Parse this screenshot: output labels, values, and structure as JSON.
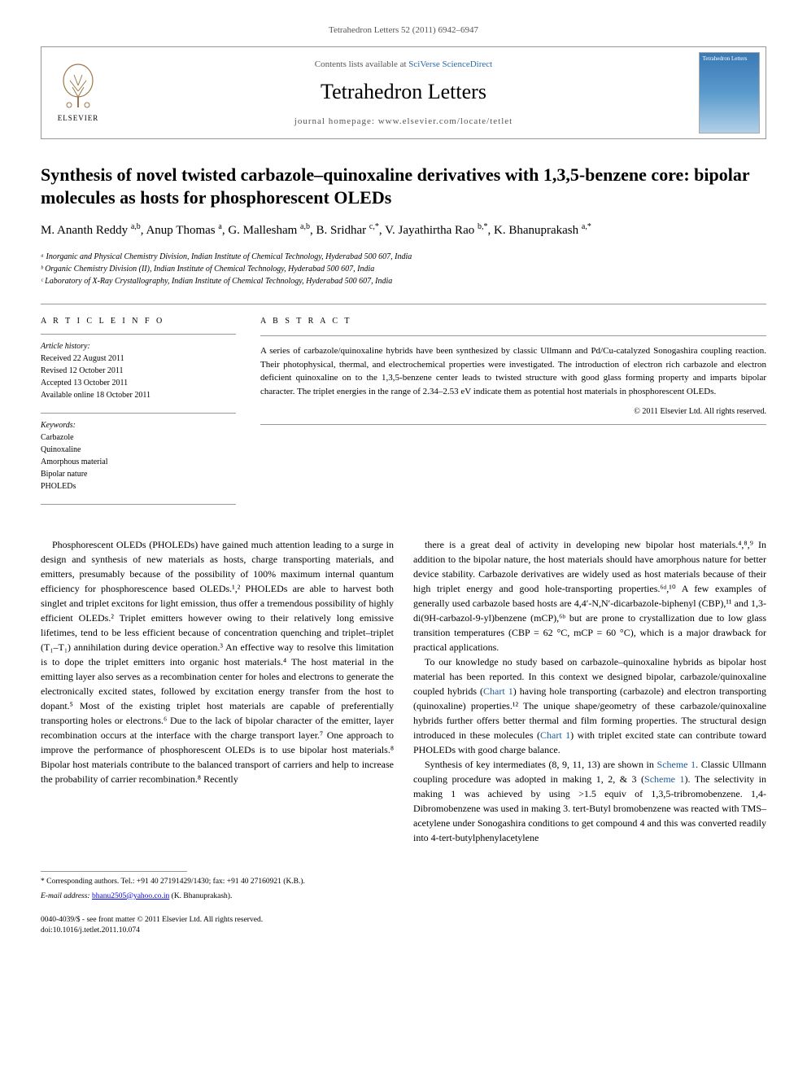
{
  "citation": "Tetrahedron Letters 52 (2011) 6942–6947",
  "header": {
    "contents_prefix": "Contents lists available at ",
    "contents_link": "SciVerse ScienceDirect",
    "journal": "Tetrahedron Letters",
    "homepage_label": "journal homepage: www.elsevier.com/locate/tetlet",
    "elsevier": "ELSEVIER",
    "cover_title": "Tetrahedron Letters"
  },
  "title": "Synthesis of novel twisted carbazole–quinoxaline derivatives with 1,3,5-benzene core: bipolar molecules as hosts for phosphorescent OLEDs",
  "authors_html": "M. Ananth Reddy <sup>a,b</sup>, Anup Thomas <sup>a</sup>, G. Mallesham <sup>a,b</sup>, B. Sridhar <sup>c,*</sup>, V. Jayathirtha Rao <sup>b,*</sup>, K. Bhanuprakash <sup>a,*</sup>",
  "affiliations": [
    "ᵃ Inorganic and Physical Chemistry Division, Indian Institute of Chemical Technology, Hyderabad 500 607, India",
    "ᵇ Organic Chemistry Division (II), Indian Institute of Chemical Technology, Hyderabad 500 607, India",
    "ᶜ Laboratory of X-Ray Crystallography, Indian Institute of Chemical Technology, Hyderabad 500 607, India"
  ],
  "article_info": {
    "heading": "A R T I C L E   I N F O",
    "history_label": "Article history:",
    "history": [
      "Received 22 August 2011",
      "Revised 12 October 2011",
      "Accepted 13 October 2011",
      "Available online 18 October 2011"
    ],
    "keywords_label": "Keywords:",
    "keywords": [
      "Carbazole",
      "Quinoxaline",
      "Amorphous material",
      "Bipolar nature",
      "PHOLEDs"
    ]
  },
  "abstract": {
    "heading": "A B S T R A C T",
    "text": "A series of carbazole/quinoxaline hybrids have been synthesized by classic Ullmann and Pd/Cu-catalyzed Sonogashira coupling reaction. Their photophysical, thermal, and electrochemical properties were investigated. The introduction of electron rich carbazole and electron deficient quinoxaline on to the 1,3,5-benzene center leads to twisted structure with good glass forming property and imparts bipolar character. The triplet energies in the range of 2.34–2.53 eV indicate them as potential host materials in phosphorescent OLEDs.",
    "copyright": "© 2011 Elsevier Ltd. All rights reserved."
  },
  "body": {
    "col1": [
      "Phosphorescent OLEDs (PHOLEDs) have gained much attention leading to a surge in design and synthesis of new materials as hosts, charge transporting materials, and emitters, presumably because of the possibility of 100% maximum internal quantum efficiency for phosphorescence based OLEDs.¹,² PHOLEDs are able to harvest both singlet and triplet excitons for light emission, thus offer a tremendous possibility of highly efficient OLEDs.² Triplet emitters however owing to their relatively long emissive lifetimes, tend to be less efficient because of concentration quenching and triplet–triplet (T₁–T₁) annihilation during device operation.³ An effective way to resolve this limitation is to dope the triplet emitters into organic host materials.⁴ The host material in the emitting layer also serves as a recombination center for holes and electrons to generate the electronically excited states, followed by excitation energy transfer from the host to dopant.⁵ Most of the existing triplet host materials are capable of preferentially transporting holes or electrons.⁶ Due to the lack of bipolar character of the emitter, layer recombination occurs at the interface with the charge transport layer.⁷ One approach to improve the performance of phosphorescent OLEDs is to use bipolar host materials.⁸ Bipolar host materials contribute to the balanced transport of carriers and help to increase the probability of carrier recombination.⁸ Recently"
    ],
    "col2": [
      "there is a great deal of activity in developing new bipolar host materials.⁴,⁸,⁹ In addition to the bipolar nature, the host materials should have amorphous nature for better device stability. Carbazole derivatives are widely used as host materials because of their high triplet energy and good hole-transporting properties.⁶ᵈ,¹⁰ A few examples of generally used carbazole based hosts are 4,4′-N,N′-dicarbazole-biphenyl (CBP),¹¹ and 1,3-di(9H-carbazol-9-yl)benzene (mCP),⁶ᵇ but are prone to crystallization due to low glass transition temperatures (CBP = 62 °C, mCP = 60 °C), which is a major drawback for practical applications.",
      "To our knowledge no study based on carbazole–quinoxaline hybrids as bipolar host material has been reported. In this context we designed bipolar, carbazole/quinoxaline coupled hybrids (Chart 1) having hole transporting (carbazole) and electron transporting (quinoxaline) properties.¹² The unique shape/geometry of these carbazole/quinoxaline hybrids further offers better thermal and film forming properties. The structural design introduced in these molecules (Chart 1) with triplet excited state can contribute toward PHOLEDs with good charge balance.",
      "Synthesis of key intermediates (8, 9, 11, 13) are shown in Scheme 1. Classic Ullmann coupling procedure was adopted in making 1, 2, & 3 (Scheme 1). The selectivity in making 1 was achieved by using >1.5 equiv of 1,3,5-tribromobenzene. 1,4-Dibromobenzene was used in making 3. tert-Butyl bromobenzene was reacted with TMS–acetylene under Sonogashira conditions to get compound 4 and this was converted readily into 4-tert-butylphenylacetylene"
    ]
  },
  "footer": {
    "corresponding": "* Corresponding authors. Tel.: +91 40 27191429/1430; fax: +91 40 27160921 (K.B.).",
    "email_label": "E-mail address:",
    "email": "bhanu2505@yahoo.co.in",
    "email_who": "(K. Bhanuprakash).",
    "left": "0040-4039/$ - see front matter © 2011 Elsevier Ltd. All rights reserved.",
    "doi": "doi:10.1016/j.tetlet.2011.10.074"
  }
}
